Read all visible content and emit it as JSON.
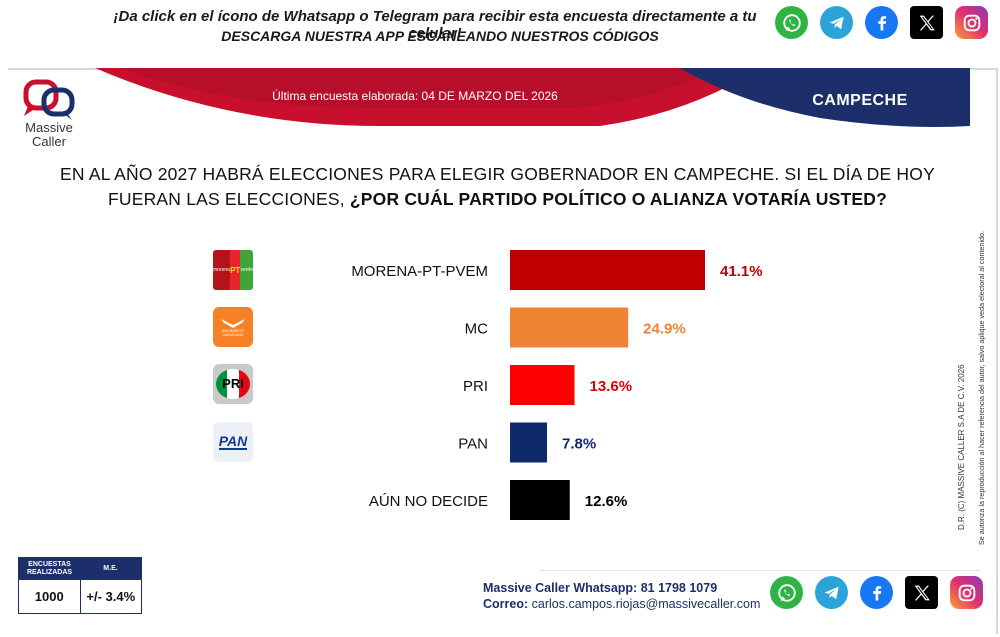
{
  "banner": {
    "line1": "¡Da click en el ícono de Whatsapp o Telegram para recibir esta encuesta directamente a tu celular!",
    "line2": "DESCARGA NUESTRA APP ESCANEANDO NUESTROS CÓDIGOS"
  },
  "social_icons": [
    "whatsapp-icon",
    "telegram-icon",
    "facebook-icon",
    "x-icon",
    "instagram-icon"
  ],
  "header": {
    "last_survey": "Última encuesta elaborada: 04 DE MARZO DEL 2026",
    "state": "CAMPECHE",
    "logo_word1": "Massive",
    "logo_word2": "Caller"
  },
  "question": {
    "plain": "EN AL AÑO 2027 HABRÁ ELECCIONES PARA ELEGIR GOBERNADOR EN CAMPECHE. SI EL DÍA DE HOY FUERAN LAS ELECCIONES, ",
    "bold": "¿POR CUÁL PARTIDO POLÍTICO O ALIANZA VOTARÍA USTED?"
  },
  "rights": {
    "line1": "D.R. (C) MASSIVE CALLER S.A DE C.V. 2026",
    "line2": "Se autoriza la reproducción al hacer referencia del autor, salvo aplique veda electoral al contenido."
  },
  "chart_data": {
    "type": "bar",
    "orientation": "horizontal",
    "categories": [
      "MORENA-PT-PVEM",
      "MC",
      "PRI",
      "PAN",
      "AÚN NO DECIDE"
    ],
    "values": [
      41.1,
      24.9,
      13.6,
      7.8,
      12.6
    ],
    "labels": [
      "41.1%",
      "24.9%",
      "13.6%",
      "7.8%",
      "12.6%"
    ],
    "colors": [
      "#c00000",
      "#ee8333",
      "#ff0000",
      "#0f2a6b",
      "#000000"
    ],
    "label_colors": [
      "#c00000",
      "#ee8333",
      "#e00000",
      "#0f2a6b",
      "#000000"
    ],
    "xlim": [
      0,
      41.1
    ]
  },
  "party_logos": {
    "morena_text": "morena",
    "pt_text": "PT",
    "pvem_text": "verde",
    "mc_text": "MOVIMIENTO CIUDADANO",
    "pri_text": "PRI",
    "pan_text": "PAN"
  },
  "margin_table": {
    "header_left": "ENCUESTAS REALIZADAS",
    "header_right": "M.E.",
    "value_left": "1000",
    "value_right": "+/- 3.4%"
  },
  "contact": {
    "whatsapp_label": "Massive Caller Whatsapp:",
    "whatsapp_number": "81 1798 1079",
    "email_label": "Correo:",
    "email": "carlos.campos.riojas@massivecaller.com"
  }
}
